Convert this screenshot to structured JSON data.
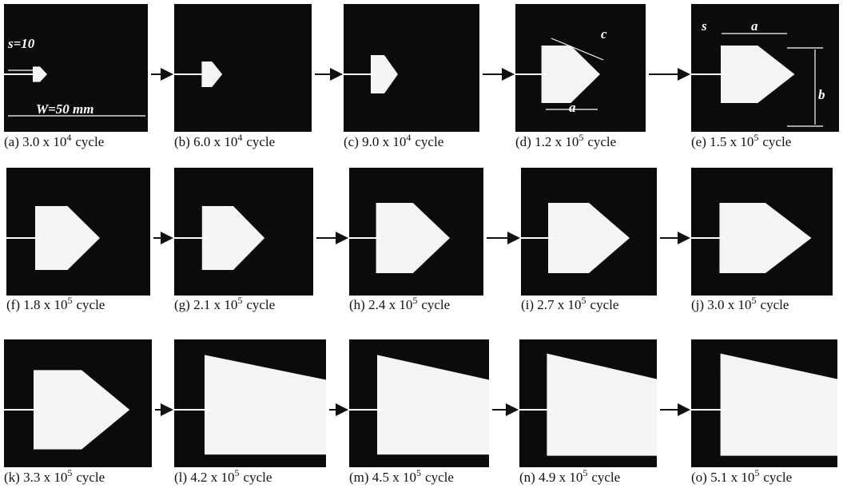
{
  "panels": [
    {
      "caption": {
        "label": "(a) 3.0 x 10",
        "exponent": "4",
        "unit": "cycle"
      }
    },
    {
      "caption": {
        "label": "(b) 6.0 x 10",
        "exponent": "4",
        "unit": "cycle"
      }
    },
    {
      "caption": {
        "label": "(c) 9.0 x 10",
        "exponent": "4",
        "unit": "cycle"
      }
    },
    {
      "caption": {
        "label": "(d) 1.2 x 10",
        "exponent": "5",
        "unit": "cycle"
      }
    },
    {
      "caption": {
        "label": "(e) 1.5 x 10",
        "exponent": "5",
        "unit": "cycle"
      }
    },
    {
      "caption": {
        "label": "(f) 1.8 x 10",
        "exponent": "5",
        "unit": "cycle"
      }
    },
    {
      "caption": {
        "label": "(g) 2.1 x 10",
        "exponent": "5",
        "unit": "cycle"
      }
    },
    {
      "caption": {
        "label": "(h) 2.4 x 10",
        "exponent": "5",
        "unit": "cycle"
      }
    },
    {
      "caption": {
        "label": "(i) 2.7 x 10",
        "exponent": "5",
        "unit": "cycle"
      }
    },
    {
      "caption": {
        "label": "(j) 3.0 x 10",
        "exponent": "5",
        "unit": "cycle"
      }
    },
    {
      "caption": {
        "label": "(k) 3.3 x 10",
        "exponent": "5",
        "unit": "cycle"
      }
    },
    {
      "caption": {
        "label": "(l) 4.2 x 10",
        "exponent": "5",
        "unit": "cycle"
      }
    },
    {
      "caption": {
        "label": "(m) 4.5 x 10",
        "exponent": "5",
        "unit": "cycle"
      }
    },
    {
      "caption": {
        "label": "(n) 4.9 x 10",
        "exponent": "5",
        "unit": "cycle"
      }
    },
    {
      "caption": {
        "label": "(o) 5.1 x 10",
        "exponent": "5",
        "unit": "cycle"
      }
    }
  ],
  "annotations": {
    "s_a": "s=10",
    "w_a": "W=50 mm",
    "c_d": "c",
    "a_d": "a",
    "s_e": "s",
    "a_e": "a",
    "b_e": "b"
  }
}
